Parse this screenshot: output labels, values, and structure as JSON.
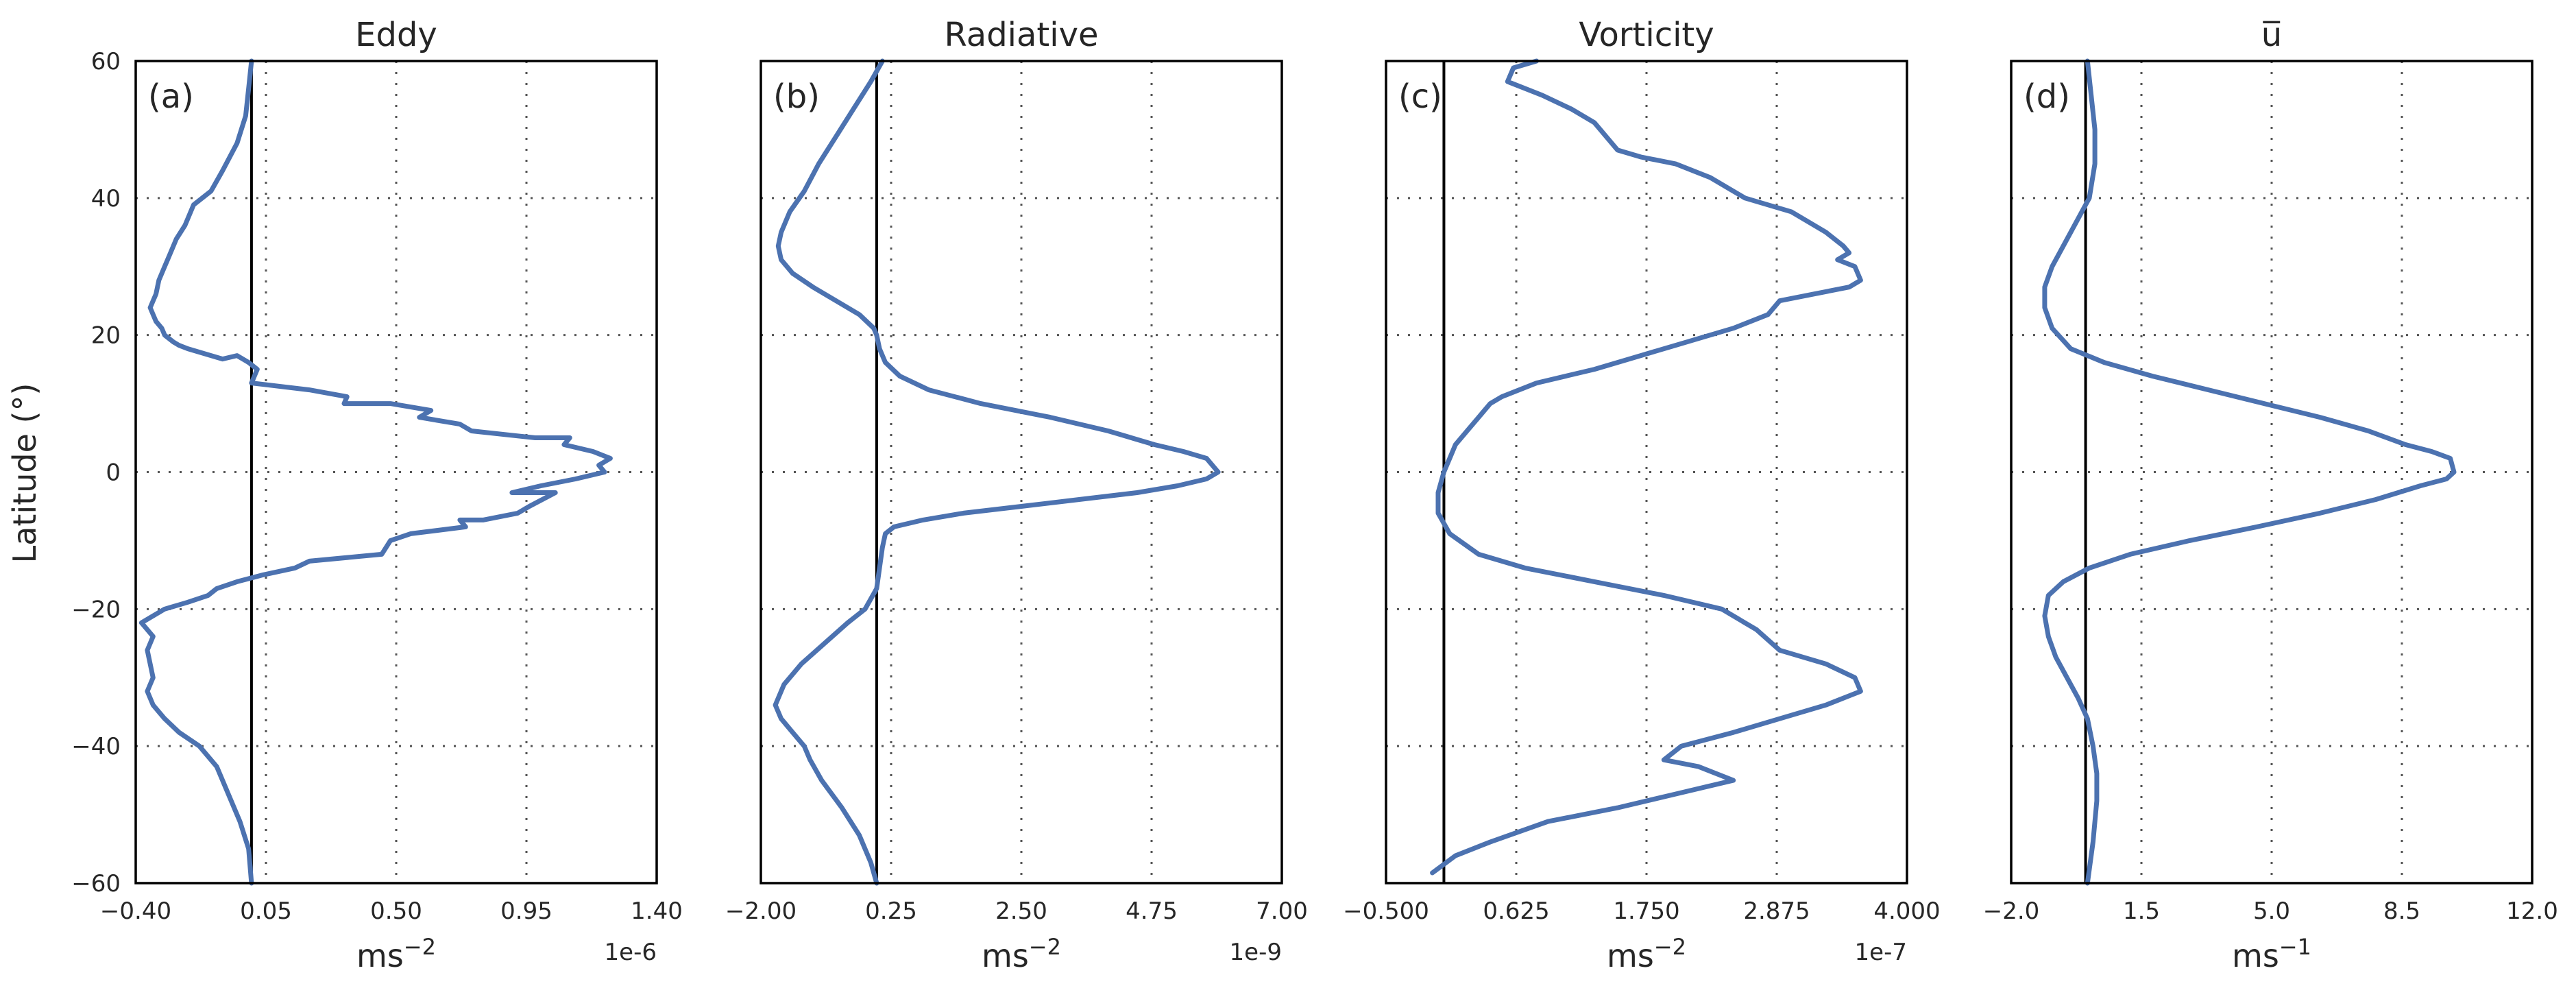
{
  "colors": {
    "series": "#4c72b0",
    "axis": "#000000",
    "text": "#262626"
  },
  "shared_ylabel": "Latitude (°)",
  "chart_data": [
    {
      "type": "line",
      "panel_tag": "(a)",
      "title": "Eddy",
      "xlabel_base": "ms",
      "xlabel_exp": "−2",
      "offset_text": "1e-6",
      "xlim": [
        -0.4,
        1.4
      ],
      "xticks": [
        -0.4,
        0.05,
        0.5,
        0.95,
        1.4
      ],
      "xtick_labels": [
        "−0.40",
        "0.05",
        "0.50",
        "0.95",
        "1.40"
      ],
      "ylim": [
        -60,
        60
      ],
      "yticks": [
        -60,
        -40,
        -20,
        0,
        20,
        40,
        60
      ],
      "ytick_labels": [
        "−60",
        "−40",
        "−20",
        "0",
        "20",
        "40",
        "60"
      ],
      "vertical_line_x": 0.0,
      "grid": true,
      "series": [
        {
          "x": [
            0.0,
            -0.01,
            -0.02,
            -0.05,
            -0.1,
            -0.14,
            -0.2,
            -0.23,
            -0.26,
            -0.28,
            -0.3,
            -0.32,
            -0.33,
            -0.34,
            -0.35,
            -0.34,
            -0.33,
            -0.31,
            -0.3,
            -0.27,
            -0.25,
            -0.22,
            -0.18,
            -0.14,
            -0.1,
            -0.05,
            -0.01,
            0.02,
            0.0,
            0.2,
            0.33,
            0.32,
            0.48,
            0.62,
            0.58,
            0.72,
            0.76,
            0.98,
            1.1,
            1.08,
            1.18,
            1.24,
            1.2,
            1.22,
            1.12,
            1.0,
            0.9,
            1.05,
            0.96,
            0.92,
            0.8,
            0.72,
            0.74,
            0.55,
            0.48,
            0.45,
            0.2,
            0.15,
            0.04,
            -0.05,
            -0.12,
            -0.15,
            -0.22,
            -0.3,
            -0.34,
            -0.38,
            -0.34,
            -0.36,
            -0.35,
            -0.34,
            -0.36,
            -0.34,
            -0.3,
            -0.25,
            -0.18,
            -0.12,
            -0.08,
            -0.04,
            -0.01,
            0.0
          ],
          "y": [
            60,
            56,
            52,
            48,
            44,
            41,
            39,
            36,
            34,
            32,
            30,
            28,
            26,
            25,
            24,
            23,
            22,
            21,
            20,
            19,
            18.5,
            18,
            17.5,
            17,
            16.5,
            17,
            16,
            15,
            13,
            12,
            11,
            10,
            10,
            9,
            8,
            7,
            6,
            5,
            5,
            4,
            3,
            2,
            1,
            0,
            -1,
            -2,
            -3,
            -3,
            -5,
            -6,
            -7,
            -7,
            -8,
            -9,
            -10,
            -12,
            -13,
            -14,
            -15,
            -16,
            -17,
            -18,
            -19,
            -20,
            -21,
            -22,
            -24,
            -26,
            -28,
            -30,
            -32,
            -34,
            -36,
            -38,
            -40,
            -43,
            -47,
            -51,
            -55,
            -60
          ],
          "color": "#4c72b0"
        }
      ]
    },
    {
      "type": "line",
      "panel_tag": "(b)",
      "title": "Radiative",
      "xlabel_base": "ms",
      "xlabel_exp": "−2",
      "offset_text": "1e-9",
      "xlim": [
        -2.0,
        7.0
      ],
      "xticks": [
        -2.0,
        0.25,
        2.5,
        4.75,
        7.0
      ],
      "xtick_labels": [
        "−2.00",
        "0.25",
        "2.50",
        "4.75",
        "7.00"
      ],
      "ylim": [
        -60,
        60
      ],
      "yticks": [
        -60,
        -40,
        -20,
        0,
        20,
        40,
        60
      ],
      "ytick_labels": [
        "−60",
        "−40",
        "−20",
        "0",
        "20",
        "40",
        "60"
      ],
      "vertical_line_x": 0.0,
      "grid": true,
      "series": [
        {
          "x": [
            0.1,
            -0.1,
            -0.4,
            -0.7,
            -1.0,
            -1.25,
            -1.5,
            -1.65,
            -1.7,
            -1.65,
            -1.45,
            -1.1,
            -0.7,
            -0.3,
            -0.05,
            0.0,
            0.05,
            0.15,
            0.4,
            0.9,
            1.8,
            3.0,
            4.0,
            4.8,
            5.3,
            5.7,
            5.9,
            5.7,
            5.2,
            4.5,
            3.5,
            2.5,
            1.5,
            0.8,
            0.3,
            0.15,
            0.1,
            0.05,
            0.0,
            -0.2,
            -0.5,
            -0.9,
            -1.3,
            -1.6,
            -1.75,
            -1.65,
            -1.45,
            -1.25,
            -1.15,
            -0.95,
            -0.6,
            -0.3,
            -0.1,
            0.0
          ],
          "y": [
            60,
            57,
            53,
            49,
            45,
            41,
            38,
            35,
            33,
            31,
            29,
            27,
            25,
            23,
            21,
            20,
            18,
            16,
            14,
            12,
            10,
            8,
            6,
            4,
            3,
            2,
            0,
            -1,
            -2,
            -3,
            -4,
            -5,
            -6,
            -7,
            -8,
            -9,
            -11,
            -14,
            -17,
            -20,
            -22,
            -25,
            -28,
            -31,
            -34,
            -36,
            -38,
            -40,
            -42,
            -45,
            -49,
            -53,
            -57,
            -60
          ],
          "color": "#4c72b0"
        }
      ]
    },
    {
      "type": "line",
      "panel_tag": "(c)",
      "title": "Vorticity",
      "xlabel_base": "ms",
      "xlabel_exp": "−2",
      "offset_text": "1e-7",
      "xlim": [
        -0.5,
        4.0
      ],
      "xticks": [
        -0.5,
        0.625,
        1.75,
        2.875,
        4.0
      ],
      "xtick_labels": [
        "−0.500",
        "0.625",
        "1.750",
        "2.875",
        "4.000"
      ],
      "ylim": [
        -60,
        60
      ],
      "yticks": [
        -60,
        -40,
        -20,
        0,
        20,
        40,
        60
      ],
      "ytick_labels": [
        "−60",
        "−40",
        "−20",
        "0",
        "20",
        "40",
        "60"
      ],
      "vertical_line_x": 0.0,
      "grid": true,
      "series": [
        {
          "x": [
            0.8,
            0.6,
            0.55,
            0.85,
            1.1,
            1.3,
            1.4,
            1.5,
            1.7,
            2.0,
            2.3,
            2.6,
            3.0,
            3.3,
            3.45,
            3.5,
            3.4,
            3.55,
            3.6,
            3.5,
            3.2,
            2.9,
            2.8,
            2.5,
            2.1,
            1.7,
            1.3,
            0.8,
            0.5,
            0.4,
            0.3,
            0.2,
            0.1,
            0.05,
            0.0,
            -0.05,
            -0.05,
            0.05,
            0.3,
            0.7,
            1.3,
            1.9,
            2.4,
            2.7,
            2.9,
            3.3,
            3.55,
            3.6,
            3.3,
            2.9,
            2.5,
            2.05,
            1.9,
            2.2,
            2.5,
            2.0,
            1.5,
            0.9,
            0.4,
            0.1,
            -0.1
          ],
          "y": [
            60,
            59,
            57,
            55,
            53,
            51,
            49,
            47,
            46,
            45,
            43,
            40,
            38,
            35,
            33,
            32,
            31,
            30,
            28,
            27,
            26,
            25,
            23,
            21,
            19,
            17,
            15,
            13,
            11,
            10,
            8,
            6,
            4,
            2,
            0,
            -3,
            -6,
            -9,
            -12,
            -14,
            -16,
            -18,
            -20,
            -23,
            -26,
            -28,
            -30,
            -32,
            -34,
            -36,
            -38,
            -40,
            -42,
            -43,
            -45,
            -47,
            -49,
            -51,
            -54,
            -56,
            -58.5
          ],
          "color": "#4c72b0"
        }
      ]
    },
    {
      "type": "line",
      "panel_tag": "(d)",
      "title": "u̅",
      "xlabel_base": "ms",
      "xlabel_exp": "−1",
      "offset_text": "",
      "xlim": [
        -2.0,
        12.0
      ],
      "xticks": [
        -2.0,
        1.5,
        5.0,
        8.5,
        12.0
      ],
      "xtick_labels": [
        "−2.0",
        "1.5",
        "5.0",
        "8.5",
        "12.0"
      ],
      "ylim": [
        -60,
        60
      ],
      "yticks": [
        -60,
        -40,
        -20,
        0,
        20,
        40,
        60
      ],
      "ytick_labels": [
        "−60",
        "−40",
        "−20",
        "0",
        "20",
        "40",
        "60"
      ],
      "vertical_line_x": 0.0,
      "grid": true,
      "series": [
        {
          "x": [
            0.05,
            0.15,
            0.25,
            0.25,
            0.1,
            -0.2,
            -0.6,
            -0.9,
            -1.1,
            -1.1,
            -0.9,
            -0.4,
            0.5,
            1.8,
            3.3,
            4.8,
            6.3,
            7.6,
            8.6,
            9.3,
            9.8,
            9.9,
            9.7,
            9.0,
            7.8,
            6.3,
            4.6,
            2.8,
            1.2,
            0.1,
            -0.6,
            -1.0,
            -1.1,
            -1.0,
            -0.8,
            -0.5,
            -0.2,
            0.05,
            0.2,
            0.3,
            0.3,
            0.2,
            0.05
          ],
          "y": [
            60,
            55,
            50,
            45,
            40,
            37,
            33,
            30,
            27,
            24,
            21,
            18,
            16,
            14,
            12,
            10,
            8,
            6,
            4,
            3,
            2,
            0,
            -1,
            -2,
            -4,
            -6,
            -8,
            -10,
            -12,
            -14,
            -16,
            -18,
            -21,
            -24,
            -27,
            -30,
            -33,
            -36,
            -40,
            -44,
            -48,
            -54,
            -60
          ],
          "color": "#4c72b0"
        }
      ]
    }
  ]
}
